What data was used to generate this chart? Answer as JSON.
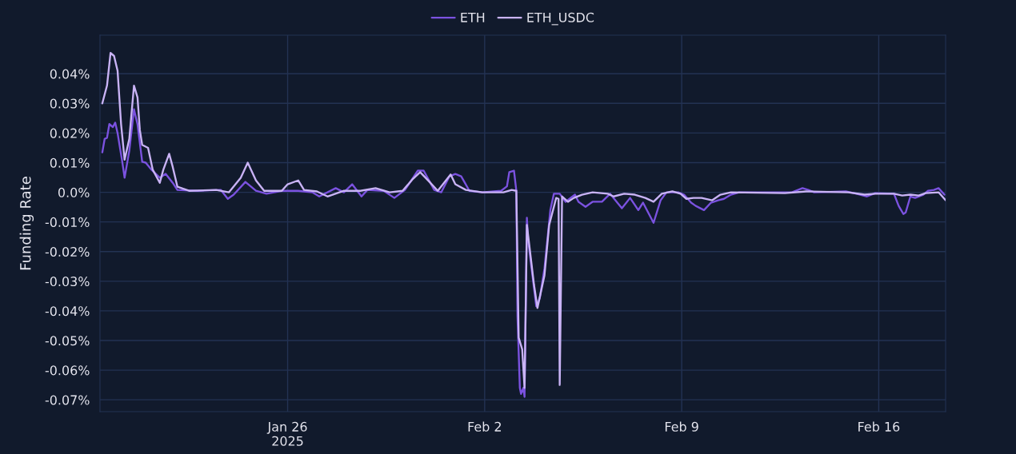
{
  "chart_data": {
    "type": "line",
    "ylabel": "Funding Rate",
    "legend": "top",
    "grid": true,
    "xlim": [
      "2025-01-19T08:00",
      "2025-02-18T09:00"
    ],
    "xticks": [
      {
        "value": "2025-01-26",
        "label": "Jan 26\n2025"
      },
      {
        "value": "2025-02-02",
        "label": "Feb 2"
      },
      {
        "value": "2025-02-09",
        "label": "Feb 9"
      },
      {
        "value": "2025-02-16",
        "label": "Feb 16"
      }
    ],
    "ylim": [
      -0.074,
      0.053
    ],
    "yticks": [
      {
        "value": 0.04,
        "label": "0.04%"
      },
      {
        "value": 0.03,
        "label": "0.03%"
      },
      {
        "value": 0.02,
        "label": "0.02%"
      },
      {
        "value": 0.01,
        "label": "0.01%"
      },
      {
        "value": 0,
        "label": "0.0%"
      },
      {
        "value": -0.01,
        "label": "-0.01%"
      },
      {
        "value": -0.02,
        "label": "-0.02%"
      },
      {
        "value": -0.03,
        "label": "-0.03%"
      },
      {
        "value": -0.04,
        "label": "-0.04%"
      },
      {
        "value": -0.05,
        "label": "-0.05%"
      },
      {
        "value": -0.06,
        "label": "-0.06%"
      },
      {
        "value": -0.07,
        "label": "-0.07%"
      }
    ],
    "series": [
      {
        "name": "ETH",
        "color": "#7b52e0",
        "x": [
          "2025-01-19T10:00",
          "2025-01-19T12:00",
          "2025-01-19T14:00",
          "2025-01-19T16:00",
          "2025-01-19T19:00",
          "2025-01-19T21:00",
          "2025-01-19T23:00",
          "2025-01-20T03:00",
          "2025-01-20T05:00",
          "2025-01-20T09:00",
          "2025-01-20T13:00",
          "2025-01-20T16:00",
          "2025-01-20T20:00",
          "2025-01-20T23:00",
          "2025-01-21T04:00",
          "2025-01-21T11:00",
          "2025-01-21T16:00",
          "2025-01-21T22:00",
          "2025-01-22T02:00",
          "2025-01-22T19:00",
          "2025-01-23T15:00",
          "2025-01-23T21:00",
          "2025-01-24T02:00",
          "2025-01-24T12:00",
          "2025-01-24T21:00",
          "2025-01-25T06:00",
          "2025-01-25T19:00",
          "2025-01-26T09:00",
          "2025-01-26T21:00",
          "2025-01-27T03:00",
          "2025-01-27T17:00",
          "2025-01-28T00:00",
          "2025-01-28T07:00",
          "2025-01-28T15:00",
          "2025-01-28T20:00",
          "2025-01-29T10:00",
          "2025-01-29T19:00",
          "2025-01-30T04:00",
          "2025-01-30T15:00",
          "2025-01-30T20:00",
          "2025-01-31T05:00",
          "2025-01-31T11:00",
          "2025-01-31T18:00",
          "2025-01-31T23:00",
          "2025-02-01T04:00",
          "2025-02-01T11:00",
          "2025-02-01T22:00",
          "2025-02-02T14:00",
          "2025-02-02T19:00",
          "2025-02-02T21:00",
          "2025-02-03T01:00",
          "2025-02-03T03:00",
          "2025-02-03T04:00",
          "2025-02-03T06:00",
          "2025-02-03T07:00",
          "2025-02-03T09:00",
          "2025-02-03T10:00",
          "2025-02-03T12:00",
          "2025-02-03T13:00",
          "2025-02-03T16:00",
          "2025-02-03T20:00",
          "2025-02-03T23:00",
          "2025-02-04T03:00",
          "2025-02-04T08:00",
          "2025-02-04T11:00",
          "2025-02-04T16:00",
          "2025-02-04T21:00",
          "2025-02-05T05:00",
          "2025-02-05T08:00",
          "2025-02-05T14:00",
          "2025-02-05T20:00",
          "2025-02-06T04:00",
          "2025-02-06T11:00",
          "2025-02-06T21:00",
          "2025-02-07T04:00",
          "2025-02-07T11:00",
          "2025-02-07T15:00",
          "2025-02-08T00:00",
          "2025-02-08T06:00",
          "2025-02-08T11:00",
          "2025-02-08T21:00",
          "2025-02-09T02:00",
          "2025-02-09T08:00",
          "2025-02-09T12:00",
          "2025-02-09T19:00",
          "2025-02-10T01:00",
          "2025-02-10T07:00",
          "2025-02-10T12:00",
          "2025-02-10T18:00",
          "2025-02-11T01:00",
          "2025-02-12T22:00",
          "2025-02-13T07:00",
          "2025-02-13T12:00",
          "2025-02-13T17:00",
          "2025-02-14T20:00",
          "2025-02-15T05:00",
          "2025-02-15T14:00",
          "2025-02-15T21:00",
          "2025-02-16T13:00",
          "2025-02-16T17:00",
          "2025-02-16T21:00",
          "2025-02-16T23:00",
          "2025-02-17T03:00",
          "2025-02-17T07:00",
          "2025-02-17T14:00",
          "2025-02-17T18:00",
          "2025-02-17T23:00",
          "2025-02-18T03:00",
          "2025-02-18T08:00"
        ],
        "values": [
          0.0135,
          0.018,
          0.0184,
          0.023,
          0.022,
          0.0235,
          0.02,
          0.0103,
          0.0049,
          0.014,
          0.028,
          0.023,
          0.0103,
          0.01,
          0.0076,
          0.0049,
          0.0062,
          0.0032,
          0.0008,
          0.0005,
          0.0008,
          -0.0022,
          -0.0008,
          0.0035,
          0.0005,
          -0.0005,
          0.0005,
          0.0005,
          0.0,
          -0.0014,
          0.0014,
          0.0,
          0.0027,
          -0.0014,
          0.0008,
          0.0005,
          -0.0019,
          0.0008,
          0.0073,
          0.0073,
          0.0008,
          0.0,
          0.0054,
          0.0062,
          0.0054,
          0.0005,
          0.0,
          0.0005,
          0.002,
          0.0068,
          0.0073,
          0.0005,
          -0.042,
          -0.066,
          -0.068,
          -0.066,
          -0.069,
          -0.0086,
          -0.0157,
          -0.0257,
          -0.0384,
          -0.0357,
          -0.0257,
          -0.006,
          -0.0005,
          -0.0005,
          -0.0032,
          -0.0008,
          -0.0032,
          -0.0049,
          -0.0032,
          -0.0032,
          -0.0005,
          -0.0054,
          -0.0019,
          -0.006,
          -0.0035,
          -0.0103,
          -0.0027,
          0.0,
          0.0,
          -0.0008,
          -0.0035,
          -0.0046,
          -0.006,
          -0.0035,
          -0.0027,
          -0.0022,
          -0.0008,
          0.0,
          0.0,
          0.0014,
          0.0008,
          0.0,
          0.0003,
          -0.0005,
          -0.0014,
          -0.0003,
          -0.0005,
          -0.0046,
          -0.0073,
          -0.0068,
          -0.0014,
          -0.0019,
          -0.0008,
          0.0005,
          0.0008,
          0.0014,
          -0.0008
        ]
      },
      {
        "name": "ETH_USDC",
        "color": "#c9b3f5",
        "x": [
          "2025-01-19T10:00",
          "2025-01-19T14:00",
          "2025-01-19T17:00",
          "2025-01-19T20:00",
          "2025-01-19T23:00",
          "2025-01-20T02:00",
          "2025-01-20T05:00",
          "2025-01-20T09:00",
          "2025-01-20T13:00",
          "2025-01-20T16:00",
          "2025-01-20T18:00",
          "2025-01-20T20:00",
          "2025-01-21T01:00",
          "2025-01-21T05:00",
          "2025-01-21T11:00",
          "2025-01-21T14:00",
          "2025-01-21T19:00",
          "2025-01-21T22:00",
          "2025-01-22T02:00",
          "2025-01-22T12:00",
          "2025-01-23T11:00",
          "2025-01-23T22:00",
          "2025-01-24T08:00",
          "2025-01-24T14:00",
          "2025-01-24T21:00",
          "2025-01-25T04:00",
          "2025-01-25T19:00",
          "2025-01-26T00:00",
          "2025-01-26T09:00",
          "2025-01-26T14:00",
          "2025-01-27T01:00",
          "2025-01-27T10:00",
          "2025-01-28T00:00",
          "2025-01-28T14:00",
          "2025-01-29T03:00",
          "2025-01-29T15:00",
          "2025-01-30T02:00",
          "2025-01-30T11:00",
          "2025-01-30T17:00",
          "2025-01-31T01:00",
          "2025-01-31T08:00",
          "2025-01-31T19:00",
          "2025-01-31T23:00",
          "2025-02-01T08:00",
          "2025-02-01T22:00",
          "2025-02-02T16:00",
          "2025-02-02T23:00",
          "2025-02-03T03:00",
          "2025-02-03T05:00",
          "2025-02-03T08:00",
          "2025-02-03T10:00",
          "2025-02-03T12:00",
          "2025-02-03T18:00",
          "2025-02-03T21:00",
          "2025-02-04T03:00",
          "2025-02-04T07:00",
          "2025-02-04T13:00",
          "2025-02-04T15:00",
          "2025-02-04T16:00",
          "2025-02-04T18:00",
          "2025-02-04T23:00",
          "2025-02-05T04:00",
          "2025-02-05T11:00",
          "2025-02-05T20:00",
          "2025-02-06T09:00",
          "2025-02-06T14:00",
          "2025-02-06T23:00",
          "2025-02-07T08:00",
          "2025-02-07T17:00",
          "2025-02-08T00:00",
          "2025-02-08T07:00",
          "2025-02-08T16:00",
          "2025-02-08T23:00",
          "2025-02-09T04:00",
          "2025-02-09T10:00",
          "2025-02-09T17:00",
          "2025-02-10T02:00",
          "2025-02-10T09:00",
          "2025-02-10T18:00",
          "2025-02-12T16:00",
          "2025-02-13T10:00",
          "2025-02-14T22:00",
          "2025-02-15T12:00",
          "2025-02-15T21:00",
          "2025-02-16T13:00",
          "2025-02-16T20:00",
          "2025-02-17T03:00",
          "2025-02-17T10:00",
          "2025-02-17T16:00",
          "2025-02-18T03:00",
          "2025-02-18T09:00"
        ],
        "values": [
          0.03,
          0.036,
          0.047,
          0.046,
          0.041,
          0.023,
          0.011,
          0.018,
          0.036,
          0.032,
          0.021,
          0.016,
          0.015,
          0.0076,
          0.0032,
          0.0076,
          0.013,
          0.0086,
          0.0019,
          0.0005,
          0.0008,
          0.0,
          0.0049,
          0.01,
          0.004,
          0.0005,
          0.0005,
          0.0027,
          0.004,
          0.0008,
          0.0003,
          -0.0014,
          0.0005,
          0.0005,
          0.0014,
          0.0,
          0.0005,
          0.0046,
          0.0068,
          0.0035,
          0.0005,
          0.006,
          0.0027,
          0.0008,
          0.0,
          0.0,
          0.0008,
          0.0005,
          -0.049,
          -0.053,
          -0.066,
          -0.011,
          -0.031,
          -0.039,
          -0.028,
          -0.011,
          -0.0019,
          -0.0022,
          -0.065,
          -0.0014,
          -0.0032,
          -0.0019,
          -0.0008,
          0.0,
          -0.0005,
          -0.0014,
          -0.0005,
          -0.0008,
          -0.0019,
          -0.0032,
          -0.0005,
          0.0003,
          -0.0005,
          -0.0022,
          -0.0019,
          -0.0019,
          -0.0027,
          -0.0008,
          0.0,
          -0.0003,
          0.0003,
          0.0,
          -0.0008,
          -0.0005,
          -0.0005,
          -0.0011,
          -0.0008,
          -0.0011,
          -0.0003,
          0.0,
          -0.0027
        ]
      }
    ]
  }
}
